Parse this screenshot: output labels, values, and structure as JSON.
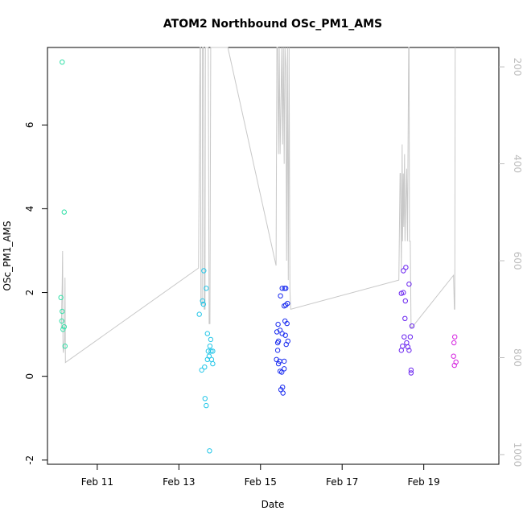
{
  "chart_data": {
    "type": "scatter",
    "title": "ATOM2 Northbound OSc_PM1_AMS",
    "xlabel": "Date",
    "ylabel": "OSc_PM1_AMS",
    "x_ticks": [
      "Feb 11",
      "Feb 13",
      "Feb 15",
      "Feb 17",
      "Feb 19"
    ],
    "y_ticks": [
      "-2",
      "0",
      "2",
      "4",
      "6"
    ],
    "y2_ticks": [
      "200",
      "400",
      "600",
      "800",
      "1000"
    ],
    "xlim": [
      9.78,
      20.84
    ],
    "ylim": [
      -2.1,
      7.85
    ],
    "y2lim": [
      160,
      1020
    ],
    "y2_inverted": true,
    "colors": {
      "axis": "#000000",
      "line": "#c8c8c8",
      "right_axis": "#bdbdbd"
    },
    "series": [
      {
        "color": "#33e0a8",
        "points": [
          [
            10.14,
            7.5
          ],
          [
            10.19,
            3.92
          ],
          [
            10.11,
            1.88
          ],
          [
            10.14,
            1.55
          ],
          [
            10.13,
            1.32
          ],
          [
            10.16,
            1.12
          ],
          [
            10.19,
            1.18
          ],
          [
            10.21,
            0.72
          ]
        ]
      },
      {
        "color": "#23c6e8",
        "points": [
          [
            13.61,
            2.52
          ],
          [
            13.67,
            2.1
          ],
          [
            13.58,
            1.8
          ],
          [
            13.6,
            1.72
          ],
          [
            13.5,
            1.48
          ],
          [
            13.7,
            1.02
          ],
          [
            13.78,
            0.88
          ],
          [
            13.76,
            0.72
          ],
          [
            13.72,
            0.6
          ],
          [
            13.79,
            0.6
          ],
          [
            13.83,
            0.6
          ],
          [
            13.74,
            0.48
          ],
          [
            13.7,
            0.4
          ],
          [
            13.8,
            0.4
          ],
          [
            13.83,
            0.3
          ],
          [
            13.63,
            0.22
          ],
          [
            13.56,
            0.15
          ],
          [
            13.64,
            -0.53
          ],
          [
            13.67,
            -0.7
          ],
          [
            13.75,
            -1.78
          ]
        ]
      },
      {
        "color": "#1a2cf0",
        "points": [
          [
            15.53,
            2.1
          ],
          [
            15.59,
            2.1
          ],
          [
            15.62,
            2.1
          ],
          [
            15.49,
            1.92
          ],
          [
            15.66,
            1.74
          ],
          [
            15.62,
            1.7
          ],
          [
            15.58,
            1.68
          ],
          [
            15.6,
            1.32
          ],
          [
            15.65,
            1.26
          ],
          [
            15.43,
            1.24
          ],
          [
            15.48,
            1.1
          ],
          [
            15.4,
            1.06
          ],
          [
            15.53,
            1.02
          ],
          [
            15.61,
            0.98
          ],
          [
            15.44,
            0.84
          ],
          [
            15.67,
            0.84
          ],
          [
            15.42,
            0.8
          ],
          [
            15.63,
            0.76
          ],
          [
            15.42,
            0.62
          ],
          [
            15.39,
            0.4
          ],
          [
            15.47,
            0.36
          ],
          [
            15.58,
            0.36
          ],
          [
            15.44,
            0.3
          ],
          [
            15.58,
            0.18
          ],
          [
            15.48,
            0.12
          ],
          [
            15.52,
            0.1
          ],
          [
            15.54,
            -0.26
          ],
          [
            15.5,
            -0.32
          ],
          [
            15.55,
            -0.4
          ]
        ]
      },
      {
        "color": "#6a24f0",
        "points": [
          [
            18.56,
            2.6
          ],
          [
            18.5,
            2.52
          ],
          [
            18.64,
            2.2
          ],
          [
            18.45,
            1.98
          ],
          [
            18.5,
            2.0
          ],
          [
            18.55,
            1.8
          ],
          [
            18.54,
            1.38
          ],
          [
            18.71,
            1.2
          ],
          [
            18.52,
            0.94
          ],
          [
            18.67,
            0.94
          ],
          [
            18.58,
            0.8
          ],
          [
            18.48,
            0.72
          ],
          [
            18.61,
            0.7
          ],
          [
            18.45,
            0.62
          ],
          [
            18.64,
            0.62
          ],
          [
            18.69,
            0.15
          ],
          [
            18.69,
            0.08
          ]
        ]
      },
      {
        "color": "#d524e0",
        "points": [
          [
            19.76,
            0.94
          ],
          [
            19.74,
            0.8
          ],
          [
            19.73,
            0.48
          ],
          [
            19.79,
            0.34
          ],
          [
            19.75,
            0.26
          ]
        ]
      }
    ],
    "line2": [
      [
        10.12,
        740
      ],
      [
        10.14,
        650
      ],
      [
        10.15,
        580
      ],
      [
        10.16,
        780
      ],
      [
        10.17,
        790
      ],
      [
        10.2,
        760
      ],
      [
        10.21,
        635
      ],
      [
        10.22,
        810
      ],
      [
        13.48,
        615
      ],
      [
        13.52,
        160
      ],
      [
        13.53,
        160
      ],
      [
        13.54,
        690
      ],
      [
        13.57,
        690
      ],
      [
        13.58,
        160
      ],
      [
        13.6,
        160
      ],
      [
        13.62,
        700
      ],
      [
        13.64,
        700
      ],
      [
        13.65,
        160
      ],
      [
        13.72,
        160
      ],
      [
        13.74,
        730
      ],
      [
        13.76,
        730
      ],
      [
        13.78,
        160
      ],
      [
        14.2,
        160
      ],
      [
        15.38,
        610
      ],
      [
        15.4,
        160
      ],
      [
        15.42,
        160
      ],
      [
        15.44,
        380
      ],
      [
        15.46,
        160
      ],
      [
        15.48,
        380
      ],
      [
        15.5,
        280
      ],
      [
        15.52,
        160
      ],
      [
        15.54,
        360
      ],
      [
        15.56,
        160
      ],
      [
        15.58,
        400
      ],
      [
        15.6,
        160
      ],
      [
        15.62,
        200
      ],
      [
        15.64,
        600
      ],
      [
        15.66,
        160
      ],
      [
        15.68,
        640
      ],
      [
        15.7,
        160
      ],
      [
        15.72,
        660
      ],
      [
        15.74,
        700
      ],
      [
        18.39,
        640
      ],
      [
        18.42,
        420
      ],
      [
        18.43,
        420
      ],
      [
        18.45,
        620
      ],
      [
        18.47,
        360
      ],
      [
        18.48,
        560
      ],
      [
        18.5,
        420
      ],
      [
        18.51,
        530
      ],
      [
        18.53,
        380
      ],
      [
        18.54,
        560
      ],
      [
        18.56,
        480
      ],
      [
        18.58,
        410
      ],
      [
        18.6,
        560
      ],
      [
        18.63,
        160
      ],
      [
        18.64,
        160
      ],
      [
        18.65,
        560
      ],
      [
        18.67,
        560
      ],
      [
        18.69,
        740
      ],
      [
        19.73,
        630
      ],
      [
        19.75,
        700
      ],
      [
        19.76,
        700
      ],
      [
        19.77,
        160
      ]
    ]
  }
}
